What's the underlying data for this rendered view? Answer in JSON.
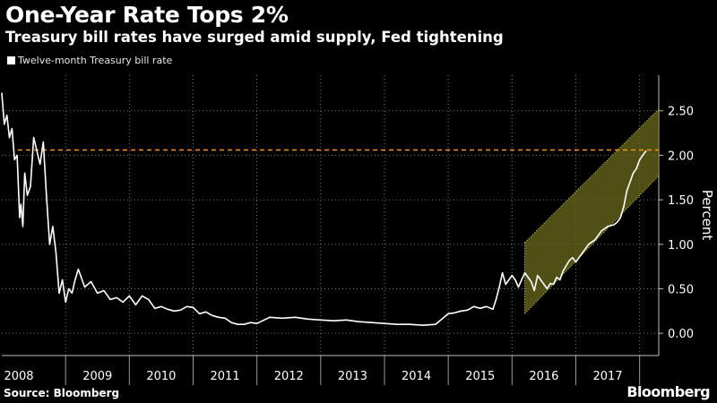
{
  "title": "One-Year Rate Tops 2%",
  "subtitle": "Treasury bill rates have surged amid supply, Fed tightening",
  "source": "Source: Bloomberg",
  "brand": "Bloomberg",
  "colors": {
    "background": "#000000",
    "line": "#ffffff",
    "grid": "#777777",
    "threshold": "#f7941d",
    "channel_fill": "#6b6a1e",
    "channel_edge": "#e8e04a"
  },
  "chart_data": {
    "type": "line",
    "title": "One-Year Rate Tops 2%",
    "subtitle": "Treasury bill rates have surged amid supply, Fed tightening",
    "ylabel": "Percent",
    "xlabel": "",
    "xlim": [
      2008.0,
      2018.3
    ],
    "ylim": [
      -0.25,
      2.9
    ],
    "x_ticks": [
      "2008",
      "2009",
      "2010",
      "2011",
      "2012",
      "2013",
      "2014",
      "2015",
      "2016",
      "2017"
    ],
    "y_ticks": [
      0.0,
      0.5,
      1.0,
      1.5,
      2.0,
      2.5
    ],
    "y_tick_labels": [
      "0.00",
      "0.50",
      "1.00",
      "1.50",
      "2.00",
      "2.50"
    ],
    "y_axis_side": "right",
    "grid": true,
    "legend": "top-left",
    "reference_line": {
      "y": 2.06,
      "style": "dashed"
    },
    "trend_channel": {
      "x_start": 2016.2,
      "x_end": 2018.3,
      "upper": [
        1.02,
        2.52
      ],
      "lower": [
        0.22,
        1.77
      ]
    },
    "series": [
      {
        "name": "Twelve-month Treasury bill rate",
        "x": [
          2008.0,
          2008.04,
          2008.08,
          2008.12,
          2008.16,
          2008.2,
          2008.24,
          2008.28,
          2008.3,
          2008.33,
          2008.36,
          2008.4,
          2008.45,
          2008.5,
          2008.55,
          2008.6,
          2008.65,
          2008.7,
          2008.75,
          2008.8,
          2008.85,
          2008.9,
          2008.95,
          2009.0,
          2009.05,
          2009.1,
          2009.15,
          2009.2,
          2009.3,
          2009.4,
          2009.5,
          2009.6,
          2009.7,
          2009.8,
          2009.9,
          2010.0,
          2010.1,
          2010.2,
          2010.3,
          2010.4,
          2010.5,
          2010.6,
          2010.7,
          2010.8,
          2010.9,
          2011.0,
          2011.1,
          2011.2,
          2011.3,
          2011.4,
          2011.5,
          2011.6,
          2011.7,
          2011.8,
          2011.9,
          2012.0,
          2012.2,
          2012.4,
          2012.6,
          2012.8,
          2013.0,
          2013.2,
          2013.4,
          2013.6,
          2013.8,
          2014.0,
          2014.2,
          2014.4,
          2014.6,
          2014.8,
          2015.0,
          2015.1,
          2015.2,
          2015.3,
          2015.4,
          2015.5,
          2015.6,
          2015.7,
          2015.75,
          2015.8,
          2015.85,
          2015.9,
          2015.95,
          2016.0,
          2016.05,
          2016.1,
          2016.2,
          2016.3,
          2016.35,
          2016.4,
          2016.45,
          2016.5,
          2016.55,
          2016.6,
          2016.65,
          2016.7,
          2016.75,
          2016.8,
          2016.85,
          2016.9,
          2016.95,
          2017.0,
          2017.1,
          2017.2,
          2017.3,
          2017.4,
          2017.5,
          2017.6,
          2017.65,
          2017.7,
          2017.75,
          2017.8,
          2017.85,
          2017.9,
          2017.95,
          2018.0,
          2018.05,
          2018.1
        ],
        "values": [
          2.7,
          2.35,
          2.45,
          2.2,
          2.3,
          1.95,
          2.0,
          1.3,
          1.45,
          1.2,
          1.8,
          1.55,
          1.65,
          2.2,
          2.05,
          1.9,
          2.15,
          1.55,
          1.0,
          1.2,
          0.9,
          0.45,
          0.6,
          0.35,
          0.5,
          0.45,
          0.6,
          0.72,
          0.52,
          0.58,
          0.45,
          0.48,
          0.38,
          0.4,
          0.35,
          0.42,
          0.32,
          0.42,
          0.38,
          0.28,
          0.3,
          0.27,
          0.25,
          0.26,
          0.3,
          0.29,
          0.22,
          0.24,
          0.2,
          0.18,
          0.17,
          0.12,
          0.1,
          0.1,
          0.12,
          0.11,
          0.18,
          0.17,
          0.18,
          0.16,
          0.15,
          0.14,
          0.15,
          0.13,
          0.12,
          0.11,
          0.1,
          0.1,
          0.09,
          0.1,
          0.22,
          0.23,
          0.25,
          0.26,
          0.3,
          0.28,
          0.3,
          0.27,
          0.38,
          0.52,
          0.68,
          0.55,
          0.6,
          0.65,
          0.6,
          0.52,
          0.68,
          0.58,
          0.48,
          0.65,
          0.6,
          0.55,
          0.5,
          0.56,
          0.55,
          0.63,
          0.6,
          0.7,
          0.76,
          0.82,
          0.85,
          0.8,
          0.9,
          1.0,
          1.05,
          1.15,
          1.2,
          1.22,
          1.25,
          1.3,
          1.42,
          1.6,
          1.7,
          1.8,
          1.85,
          1.95,
          2.0,
          2.05
        ]
      }
    ]
  }
}
